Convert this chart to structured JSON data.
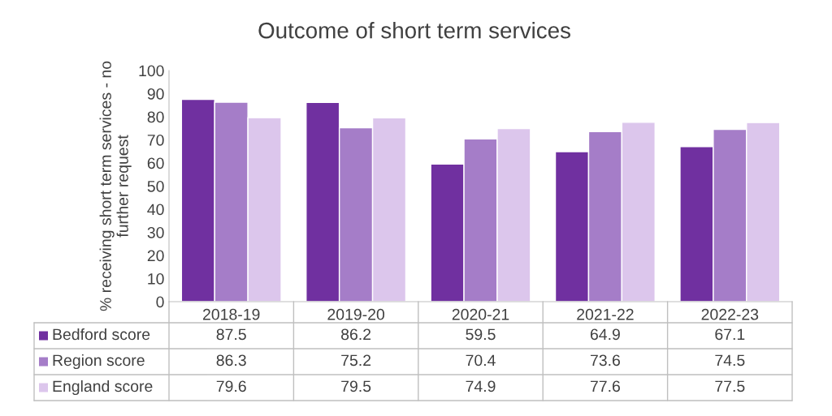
{
  "chart_data": {
    "type": "bar",
    "title": "Outcome of short term services",
    "ylabel": "% receiving short term services - no\nfurther request",
    "categories": [
      "2018-19",
      "2019-20",
      "2020-21",
      "2021-22",
      "2022-23"
    ],
    "series": [
      {
        "name": "Bedford score",
        "color": "#7030a0",
        "values": [
          87.5,
          86.2,
          59.5,
          64.9,
          67.1
        ]
      },
      {
        "name": "Region score",
        "color": "#a57dc8",
        "values": [
          86.3,
          75.2,
          70.4,
          73.6,
          74.5
        ]
      },
      {
        "name": "England score",
        "color": "#dcc6ec",
        "values": [
          79.6,
          79.5,
          74.9,
          77.6,
          77.5
        ]
      }
    ],
    "ylim": [
      0,
      100
    ],
    "yticks": [
      0,
      10,
      20,
      30,
      40,
      50,
      60,
      70,
      80,
      90,
      100
    ],
    "grid": false,
    "legend": "bottom left",
    "data_labels": true
  }
}
